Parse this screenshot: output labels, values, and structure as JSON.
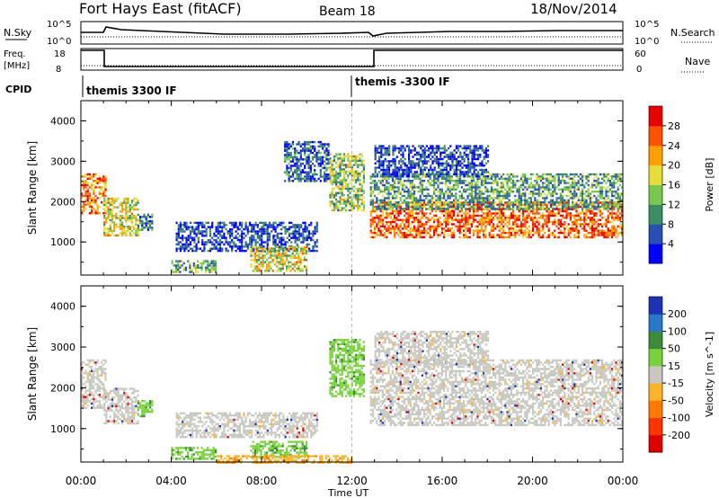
{
  "header": {
    "station": "Fort Hays East (fitACF)",
    "beam": "Beam 18",
    "date": "18/Nov/2014"
  },
  "status_panels": {
    "nsky": {
      "label": "N.Sky",
      "ticks": [
        "10^5",
        "10^0"
      ]
    },
    "nsearch": {
      "label": "N.Search",
      "ticks": [
        "10^5",
        "10^0"
      ]
    },
    "freq": {
      "label_line1": "Freq.",
      "label_line2": "[MHz]",
      "ticks": [
        "18",
        "8"
      ]
    },
    "nave": {
      "label": "Nave",
      "ticks": [
        "60",
        "0"
      ]
    },
    "cpid": {
      "label": "CPID",
      "segments": [
        {
          "name": "themis 3300 IF",
          "start_hour": 0
        },
        {
          "name": "themis -3300 IF",
          "start_hour": 12
        }
      ]
    }
  },
  "chart_data": [
    {
      "type": "heatmap",
      "name": "power",
      "ylabel": "Slant Range [km]",
      "xlabel": "Time UT",
      "yticks": [
        "1000",
        "2000",
        "3000",
        "4000"
      ],
      "ylim": [
        180,
        4500
      ],
      "xticks": [
        "00:00",
        "04:00",
        "08:00",
        "12:00",
        "16:00",
        "20:00",
        "00:00"
      ],
      "xlim_hours": [
        0,
        24
      ],
      "colorbar": {
        "label": "Power [dB]",
        "ticks": [
          "4",
          "8",
          "12",
          "16",
          "20",
          "24",
          "28"
        ],
        "colors": [
          "#0000ff",
          "#2850b4",
          "#3c8c64",
          "#78c850",
          "#e6dc3c",
          "#ffa000",
          "#ff5000",
          "#e60000"
        ]
      },
      "regions": [
        {
          "t0": 0.0,
          "t1": 1.1,
          "r0": 1700,
          "r1": 2700,
          "level": 0.75
        },
        {
          "t0": 1.0,
          "t1": 2.5,
          "r0": 1150,
          "r1": 2100,
          "level": 0.55
        },
        {
          "t0": 2.5,
          "t1": 3.2,
          "r0": 1300,
          "r1": 1700,
          "level": 0.25
        },
        {
          "t0": 4.2,
          "t1": 10.5,
          "r0": 800,
          "r1": 1500,
          "level": 0.15
        },
        {
          "t0": 4.0,
          "t1": 6.0,
          "r0": 250,
          "r1": 550,
          "level": 0.35
        },
        {
          "t0": 7.5,
          "t1": 10.0,
          "r0": 300,
          "r1": 900,
          "level": 0.55
        },
        {
          "t0": 9.0,
          "t1": 11.0,
          "r0": 2500,
          "r1": 3500,
          "level": 0.2
        },
        {
          "t0": 11.0,
          "t1": 12.5,
          "r0": 1800,
          "r1": 3200,
          "level": 0.45
        },
        {
          "t0": 12.8,
          "t1": 24.0,
          "r0": 1100,
          "r1": 2000,
          "level": 0.8
        },
        {
          "t0": 12.8,
          "t1": 24.0,
          "r0": 1800,
          "r1": 2700,
          "level": 0.35
        },
        {
          "t0": 13.0,
          "t1": 18.0,
          "r0": 2600,
          "r1": 3400,
          "level": 0.15
        }
      ]
    },
    {
      "type": "heatmap",
      "name": "velocity",
      "ylabel": "Slant Range [km]",
      "xlabel": "Time UT",
      "yticks": [
        "1000",
        "2000",
        "3000",
        "4000"
      ],
      "ylim": [
        180,
        4500
      ],
      "xticks": [
        "00:00",
        "04:00",
        "08:00",
        "12:00",
        "16:00",
        "20:00",
        "00:00"
      ],
      "xlim_hours": [
        0,
        24
      ],
      "colorbar": {
        "label": "Velocity [m s^-1]",
        "ticks": [
          "200",
          "100",
          "50",
          "15",
          "-15",
          "-50",
          "-100",
          "-200"
        ],
        "colors": [
          "#1e32b4",
          "#2878c8",
          "#3c8c3c",
          "#78d23c",
          "#c8c8c0",
          "#ffb428",
          "#ff7800",
          "#ff3200",
          "#dc0000"
        ]
      },
      "regions": [
        {
          "t0": 0.0,
          "t1": 1.1,
          "r0": 1500,
          "r1": 2700,
          "cls": "gray"
        },
        {
          "t0": 1.0,
          "t1": 2.5,
          "r0": 1150,
          "r1": 2000,
          "cls": "gray"
        },
        {
          "t0": 2.5,
          "t1": 3.2,
          "r0": 1300,
          "r1": 1700,
          "cls": "green"
        },
        {
          "t0": 4.2,
          "t1": 10.5,
          "r0": 800,
          "r1": 1400,
          "cls": "gray"
        },
        {
          "t0": 4.0,
          "t1": 6.0,
          "r0": 250,
          "r1": 550,
          "cls": "green"
        },
        {
          "t0": 7.5,
          "t1": 10.0,
          "r0": 300,
          "r1": 700,
          "cls": "green"
        },
        {
          "t0": 6.0,
          "t1": 12.0,
          "r0": 150,
          "r1": 350,
          "cls": "orange"
        },
        {
          "t0": 11.0,
          "t1": 12.5,
          "r0": 1800,
          "r1": 3200,
          "cls": "green"
        },
        {
          "t0": 12.8,
          "t1": 24.0,
          "r0": 1100,
          "r1": 2700,
          "cls": "gray"
        },
        {
          "t0": 13.0,
          "t1": 18.0,
          "r0": 2600,
          "r1": 3400,
          "cls": "gray"
        }
      ]
    }
  ]
}
